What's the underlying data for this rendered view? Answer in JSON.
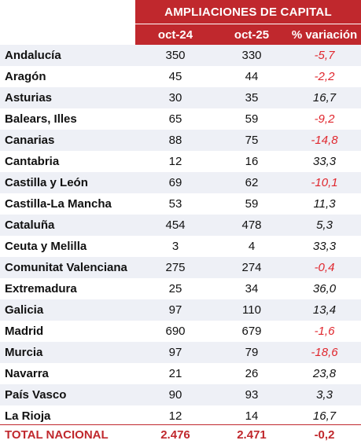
{
  "table": {
    "title": "AMPLIACIONES DE CAPITAL",
    "columns": [
      "oct-24",
      "oct-25",
      "% variación"
    ],
    "rows": [
      {
        "name": "Andalucía",
        "oct24": "350",
        "oct25": "330",
        "var": "-5,7"
      },
      {
        "name": "Aragón",
        "oct24": "45",
        "oct25": "44",
        "var": "-2,2"
      },
      {
        "name": "Asturias",
        "oct24": "30",
        "oct25": "35",
        "var": "16,7"
      },
      {
        "name": "Balears, Illes",
        "oct24": "65",
        "oct25": "59",
        "var": "-9,2"
      },
      {
        "name": "Canarias",
        "oct24": "88",
        "oct25": "75",
        "var": "-14,8"
      },
      {
        "name": "Cantabria",
        "oct24": "12",
        "oct25": "16",
        "var": "33,3"
      },
      {
        "name": "Castilla y León",
        "oct24": "69",
        "oct25": "62",
        "var": "-10,1"
      },
      {
        "name": "Castilla-La Mancha",
        "oct24": "53",
        "oct25": "59",
        "var": "11,3"
      },
      {
        "name": "Cataluña",
        "oct24": "454",
        "oct25": "478",
        "var": "5,3"
      },
      {
        "name": "Ceuta y Melilla",
        "oct24": "3",
        "oct25": "4",
        "var": "33,3"
      },
      {
        "name": "Comunitat Valenciana",
        "oct24": "275",
        "oct25": "274",
        "var": "-0,4"
      },
      {
        "name": "Extremadura",
        "oct24": "25",
        "oct25": "34",
        "var": "36,0"
      },
      {
        "name": "Galicia",
        "oct24": "97",
        "oct25": "110",
        "var": "13,4"
      },
      {
        "name": "Madrid",
        "oct24": "690",
        "oct25": "679",
        "var": "-1,6"
      },
      {
        "name": "Murcia",
        "oct24": "97",
        "oct25": "79",
        "var": "-18,6"
      },
      {
        "name": "Navarra",
        "oct24": "21",
        "oct25": "26",
        "var": "23,8"
      },
      {
        "name": "País Vasco",
        "oct24": "90",
        "oct25": "93",
        "var": "3,3"
      },
      {
        "name": "La Rioja",
        "oct24": "12",
        "oct25": "14",
        "var": "16,7"
      }
    ],
    "total": {
      "name": "TOTAL NACIONAL",
      "oct24": "2.476",
      "oct25": "2.471",
      "var": "-0,2"
    }
  },
  "colors": {
    "header_bg": "#c0282d",
    "negative": "#e0262d",
    "stripe": "#eef0f6"
  }
}
